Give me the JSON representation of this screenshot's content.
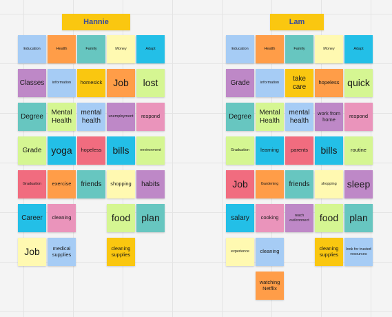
{
  "colors": {
    "blue": "#a6ccf5",
    "orange": "#ff9d48",
    "green": "#67c6c0",
    "yellow": "#fff9b1",
    "cyan": "#23bfe7",
    "purple": "#be88c7",
    "lime": "#d5f692",
    "gold": "#fac710",
    "pink": "#ea94bb",
    "red": "#f16c7f"
  },
  "boards": [
    {
      "title": "Hannie",
      "columns": [
        [
          {
            "text": "Education",
            "color": "blue",
            "size": "xs"
          },
          {
            "text": "Classes",
            "color": "purple",
            "size": "m"
          },
          {
            "text": "Degree",
            "color": "green",
            "size": "m"
          },
          {
            "text": "Grade",
            "color": "lime",
            "size": "m"
          },
          {
            "text": "Graduation",
            "color": "red",
            "size": "xs"
          },
          {
            "text": "Career",
            "color": "cyan",
            "size": "m"
          },
          {
            "text": "Job",
            "color": "yellow",
            "size": "l"
          }
        ],
        [
          {
            "text": "Health",
            "color": "orange",
            "size": "xs"
          },
          {
            "text": "information",
            "color": "blue",
            "size": "xs"
          },
          {
            "text": "Mental Health",
            "color": "lime",
            "size": "m"
          },
          {
            "text": "yoga",
            "color": "cyan",
            "size": "l"
          },
          {
            "text": "exercise",
            "color": "orange",
            "size": "s"
          },
          {
            "text": "cleaning",
            "color": "pink",
            "size": "s"
          },
          {
            "text": "medical supplies",
            "color": "blue",
            "size": "s"
          }
        ],
        [
          {
            "text": "Family",
            "color": "green",
            "size": "xs"
          },
          {
            "text": "homesick",
            "color": "gold",
            "size": "s"
          },
          {
            "text": "mental health",
            "color": "blue",
            "size": "m"
          },
          {
            "text": "hopeless",
            "color": "red",
            "size": "s"
          },
          {
            "text": "friends",
            "color": "green",
            "size": "m"
          }
        ],
        [
          {
            "text": "Money",
            "color": "yellow",
            "size": "xs"
          },
          {
            "text": "Job",
            "color": "orange",
            "size": "l"
          },
          {
            "text": "unemployment",
            "color": "purple",
            "size": "xs"
          },
          {
            "text": "bills",
            "color": "cyan",
            "size": "l"
          },
          {
            "text": "shopping",
            "color": "yellow",
            "size": "s"
          },
          {
            "text": "food",
            "color": "lime",
            "size": "l"
          },
          {
            "text": "cleaning supplies",
            "color": "gold",
            "size": "s"
          }
        ],
        [
          {
            "text": "Adapt",
            "color": "cyan",
            "size": "xs"
          },
          {
            "text": "lost",
            "color": "lime",
            "size": "l"
          },
          {
            "text": "respond",
            "color": "pink",
            "size": "s"
          },
          {
            "text": "environment",
            "color": "lime",
            "size": "xs"
          },
          {
            "text": "habits",
            "color": "purple",
            "size": "m"
          },
          {
            "text": "plan",
            "color": "green",
            "size": "l"
          }
        ]
      ]
    },
    {
      "title": "Lam",
      "columns": [
        [
          {
            "text": "Education",
            "color": "blue",
            "size": "xs"
          },
          {
            "text": "Grade",
            "color": "purple",
            "size": "m"
          },
          {
            "text": "Degree",
            "color": "green",
            "size": "m"
          },
          {
            "text": "Graduation",
            "color": "lime",
            "size": "xs"
          },
          {
            "text": "Job",
            "color": "red",
            "size": "l"
          },
          {
            "text": "salary",
            "color": "cyan",
            "size": "m"
          },
          {
            "text": "experience",
            "color": "yellow",
            "size": "xs"
          }
        ],
        [
          {
            "text": "Health",
            "color": "orange",
            "size": "xs"
          },
          {
            "text": "information",
            "color": "blue",
            "size": "xs"
          },
          {
            "text": "Mental Health",
            "color": "lime",
            "size": "m"
          },
          {
            "text": "learning",
            "color": "cyan",
            "size": "s"
          },
          {
            "text": "Gardening",
            "color": "orange",
            "size": "xs"
          },
          {
            "text": "cooking",
            "color": "pink",
            "size": "s"
          },
          {
            "text": "cleaning",
            "color": "blue",
            "size": "s"
          },
          {
            "text": "watching Netflix",
            "color": "orange",
            "size": "s"
          }
        ],
        [
          {
            "text": "Family",
            "color": "green",
            "size": "xs"
          },
          {
            "text": "take care",
            "color": "gold",
            "size": "m"
          },
          {
            "text": "mental health",
            "color": "blue",
            "size": "m"
          },
          {
            "text": "parents",
            "color": "red",
            "size": "s"
          },
          {
            "text": "friends",
            "color": "green",
            "size": "m"
          },
          {
            "text": "reach out/connect",
            "color": "purple",
            "size": "xs"
          }
        ],
        [
          {
            "text": "Money",
            "color": "yellow",
            "size": "xs"
          },
          {
            "text": "hopeless",
            "color": "orange",
            "size": "s"
          },
          {
            "text": "work from home",
            "color": "purple",
            "size": "s"
          },
          {
            "text": "bills",
            "color": "cyan",
            "size": "l"
          },
          {
            "text": "shopping",
            "color": "yellow",
            "size": "xs"
          },
          {
            "text": "food",
            "color": "lime",
            "size": "l"
          },
          {
            "text": "cleaning supplies",
            "color": "gold",
            "size": "s"
          }
        ],
        [
          {
            "text": "Adapt",
            "color": "cyan",
            "size": "xs"
          },
          {
            "text": "quick",
            "color": "lime",
            "size": "l"
          },
          {
            "text": "respond",
            "color": "pink",
            "size": "s"
          },
          {
            "text": "routine",
            "color": "lime",
            "size": "s"
          },
          {
            "text": "sleep",
            "color": "purple",
            "size": "l"
          },
          {
            "text": "plan",
            "color": "green",
            "size": "l"
          },
          {
            "text": "look for trusted resources",
            "color": "blue",
            "size": "xs"
          }
        ]
      ]
    }
  ]
}
